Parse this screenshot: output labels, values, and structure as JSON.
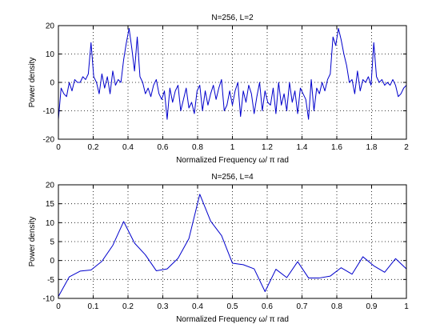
{
  "chart_data": [
    {
      "type": "line",
      "title": "N=256, L=2",
      "xlabel": "Normalized Frequency  ω/  π rad",
      "ylabel": "Power density",
      "xlim": [
        0,
        2
      ],
      "ylim": [
        -20,
        20
      ],
      "x_ticks": [
        0,
        0.2,
        0.4,
        0.6,
        0.8,
        1,
        1.2,
        1.4,
        1.6,
        1.8,
        2
      ],
      "x_tick_labels": [
        "0",
        "0.2",
        "0.4",
        "0.6",
        "0.8",
        "1",
        "1.2",
        "1.4",
        "1.6",
        "1.8",
        "2"
      ],
      "y_ticks": [
        -20,
        -10,
        0,
        10,
        20
      ],
      "y_tick_labels": [
        "-20",
        "-10",
        "0",
        "10",
        "20"
      ],
      "grid": true,
      "line_color": "#0000cc",
      "series": [
        {
          "x": [
            0,
            0.0156,
            0.0313,
            0.0469,
            0.0625,
            0.0781,
            0.0938,
            0.1094,
            0.125,
            0.1406,
            0.1563,
            0.1719,
            0.1875,
            0.2031,
            0.2188,
            0.2344,
            0.25,
            0.2656,
            0.2813,
            0.2969,
            0.3125,
            0.3281,
            0.3438,
            0.3594,
            0.375,
            0.3906,
            0.4063,
            0.4219,
            0.4375,
            0.4531,
            0.4688,
            0.4844,
            0.5,
            0.5156,
            0.5313,
            0.5469,
            0.5625,
            0.5781,
            0.5938,
            0.6094,
            0.625,
            0.6406,
            0.6563,
            0.6719,
            0.6875,
            0.7031,
            0.7188,
            0.7344,
            0.75,
            0.7656,
            0.7813,
            0.7969,
            0.8125,
            0.8281,
            0.8438,
            0.8594,
            0.875,
            0.8906,
            0.9063,
            0.9219,
            0.9375,
            0.9531,
            0.9688,
            0.9844,
            1,
            1.0156,
            1.0313,
            1.0469,
            1.0625,
            1.0781,
            1.0938,
            1.1094,
            1.125,
            1.1406,
            1.1563,
            1.1719,
            1.1875,
            1.2031,
            1.2188,
            1.2344,
            1.25,
            1.2656,
            1.2813,
            1.2969,
            1.3125,
            1.3281,
            1.3438,
            1.3594,
            1.375,
            1.3906,
            1.4063,
            1.4219,
            1.4375,
            1.4531,
            1.4688,
            1.4844,
            1.5,
            1.5156,
            1.5313,
            1.5469,
            1.5625,
            1.5781,
            1.5938,
            1.6094,
            1.625,
            1.6406,
            1.6563,
            1.6719,
            1.6875,
            1.7031,
            1.7188,
            1.7344,
            1.75,
            1.7656,
            1.7813,
            1.7969,
            1.8125,
            1.8281,
            1.8438,
            1.8594,
            1.875,
            1.8906,
            1.9063,
            1.9219,
            1.9375,
            1.9531,
            1.9688,
            1.9844,
            2
          ],
          "y": [
            -13,
            -2,
            -4,
            -5,
            0,
            -3,
            1,
            0,
            0,
            2,
            1,
            3,
            14,
            2,
            0,
            -4,
            3,
            -2,
            2,
            -4,
            4,
            -1,
            1,
            0,
            8,
            14,
            19,
            12,
            4,
            16,
            2,
            0,
            -4,
            -2,
            -5,
            -1,
            1,
            -4,
            -6,
            -3,
            -13,
            -2,
            -7,
            -3,
            -1,
            -10,
            -6,
            -2,
            -9,
            -7,
            -11,
            -3,
            -1,
            -10,
            -3,
            -8,
            -4,
            -1,
            -6,
            -2,
            1,
            -10,
            -8,
            -3,
            -8,
            -3,
            0,
            -12,
            -3,
            -7,
            -1,
            -4,
            -11,
            -5,
            0,
            -10,
            -3,
            -7,
            -8,
            -2,
            -11,
            0,
            -8,
            -4,
            -10,
            0,
            -7,
            -3,
            -11,
            -2,
            -4,
            -6,
            -13,
            1,
            -10,
            -2,
            -4,
            0,
            -3,
            1,
            3,
            16,
            13,
            19,
            15,
            10,
            6,
            0,
            1,
            -4,
            4,
            -3,
            1,
            0,
            2,
            -1,
            14,
            2,
            0,
            1,
            -1,
            0,
            -1,
            1,
            -1,
            -5,
            -4,
            -2,
            -1
          ]
        }
      ]
    },
    {
      "type": "line",
      "title": "N=256, L=4",
      "xlabel": "Normalized Frequency  ω/  π rad",
      "ylabel": "Power density",
      "xlim": [
        0,
        1
      ],
      "ylim": [
        -10,
        20
      ],
      "x_ticks": [
        0,
        0.1,
        0.2,
        0.3,
        0.4,
        0.5,
        0.6,
        0.7,
        0.8,
        0.9,
        1
      ],
      "x_tick_labels": [
        "0",
        "0.1",
        "0.2",
        "0.3",
        "0.4",
        "0.5",
        "0.6",
        "0.7",
        "0.8",
        "0.9",
        "1"
      ],
      "y_ticks": [
        -10,
        -5,
        0,
        5,
        10,
        15,
        20
      ],
      "y_tick_labels": [
        "-10",
        "-5",
        "0",
        "5",
        "10",
        "15",
        "20"
      ],
      "grid": true,
      "line_color": "#0000cc",
      "series": [
        {
          "x": [
            0,
            0.0313,
            0.0625,
            0.0938,
            0.125,
            0.1563,
            0.1875,
            0.2188,
            0.25,
            0.2813,
            0.3125,
            0.3438,
            0.375,
            0.4063,
            0.4375,
            0.4688,
            0.5,
            0.5313,
            0.5625,
            0.5938,
            0.625,
            0.6563,
            0.6875,
            0.7188,
            0.75,
            0.7813,
            0.8125,
            0.8438,
            0.875,
            0.9063,
            0.9375,
            0.9688,
            1
          ],
          "y": [
            -9.5,
            -4.3,
            -2.8,
            -2.5,
            -0.2,
            4.0,
            10.3,
            4.6,
            1.5,
            -2.7,
            -2.2,
            0.6,
            5.8,
            17.5,
            10.4,
            6.6,
            -0.7,
            -1.1,
            -2.2,
            -8.2,
            -2.3,
            -4.5,
            -0.3,
            -4.6,
            -4.6,
            -4.1,
            -1.9,
            -3.6,
            1.0,
            -1.4,
            -3.1,
            0.5,
            -2.2
          ]
        }
      ]
    }
  ]
}
